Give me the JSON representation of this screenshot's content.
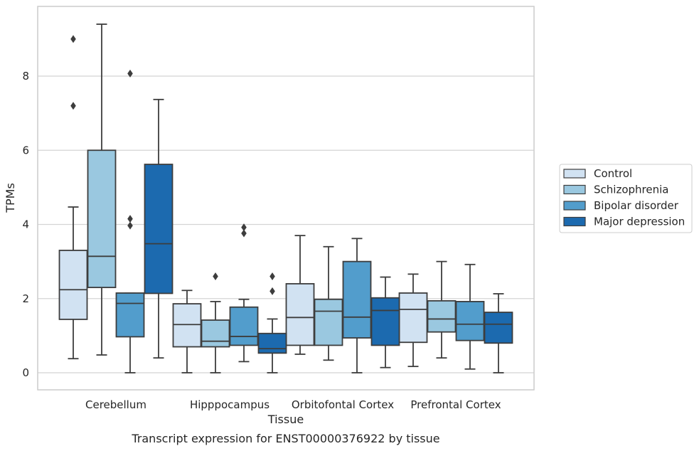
{
  "chart_data": {
    "type": "box",
    "xlabel": "Tissue",
    "ylabel": "TPMs",
    "caption": "Transcript expression for ENST00000376922 by tissue",
    "ylim": [
      -0.45,
      9.9
    ],
    "yticks": [
      0,
      2,
      4,
      6,
      8
    ],
    "grid": "y",
    "legend_placement": "right",
    "categories": [
      "Cerebellum",
      "Hipppocampus",
      "Orbitofontal Cortex",
      "Prefrontal Cortex"
    ],
    "series": [
      {
        "name": "Control",
        "color": "#d1e2f2",
        "boxes": [
          {
            "whislo": 0.38,
            "q1": 1.44,
            "med": 2.24,
            "q3": 3.3,
            "whishi": 4.47,
            "fliers": [
              7.2,
              9.0
            ]
          },
          {
            "whislo": 0.0,
            "q1": 0.7,
            "med": 1.3,
            "q3": 1.86,
            "whishi": 2.22,
            "fliers": []
          },
          {
            "whislo": 0.5,
            "q1": 0.74,
            "med": 1.49,
            "q3": 2.4,
            "whishi": 3.7,
            "fliers": []
          },
          {
            "whislo": 0.17,
            "q1": 0.82,
            "med": 1.71,
            "q3": 2.15,
            "whishi": 2.66,
            "fliers": []
          }
        ]
      },
      {
        "name": "Schizophrenia",
        "color": "#9ac8e0",
        "boxes": [
          {
            "whislo": 0.48,
            "q1": 2.3,
            "med": 3.14,
            "q3": 6.0,
            "whishi": 9.4,
            "fliers": []
          },
          {
            "whislo": 0.0,
            "q1": 0.7,
            "med": 0.85,
            "q3": 1.42,
            "whishi": 1.92,
            "fliers": [
              2.6
            ]
          },
          {
            "whislo": 0.34,
            "q1": 0.74,
            "med": 1.66,
            "q3": 1.98,
            "whishi": 3.4,
            "fliers": []
          },
          {
            "whislo": 0.4,
            "q1": 1.1,
            "med": 1.45,
            "q3": 1.94,
            "whishi": 3.0,
            "fliers": []
          }
        ]
      },
      {
        "name": "Bipolar disorder",
        "color": "#529dcc",
        "boxes": [
          {
            "whislo": 0.0,
            "q1": 0.97,
            "med": 1.87,
            "q3": 2.15,
            "whishi": 2.15,
            "fliers": [
              3.97,
              4.15,
              8.07
            ]
          },
          {
            "whislo": 0.3,
            "q1": 0.74,
            "med": 0.98,
            "q3": 1.77,
            "whishi": 1.98,
            "fliers": [
              3.76,
              3.92
            ]
          },
          {
            "whislo": 0.0,
            "q1": 0.94,
            "med": 1.5,
            "q3": 3.0,
            "whishi": 3.62,
            "fliers": []
          },
          {
            "whislo": 0.1,
            "q1": 0.87,
            "med": 1.31,
            "q3": 1.92,
            "whishi": 2.92,
            "fliers": []
          }
        ]
      },
      {
        "name": "Major depression",
        "color": "#1c6aaf",
        "boxes": [
          {
            "whislo": 0.4,
            "q1": 2.14,
            "med": 3.48,
            "q3": 5.62,
            "whishi": 7.37,
            "fliers": []
          },
          {
            "whislo": 0.0,
            "q1": 0.53,
            "med": 0.65,
            "q3": 1.06,
            "whishi": 1.45,
            "fliers": [
              2.2,
              2.6
            ]
          },
          {
            "whislo": 0.14,
            "q1": 0.74,
            "med": 1.68,
            "q3": 2.02,
            "whishi": 2.58,
            "fliers": []
          },
          {
            "whislo": 0.0,
            "q1": 0.8,
            "med": 1.31,
            "q3": 1.63,
            "whishi": 2.13,
            "fliers": []
          }
        ]
      }
    ]
  }
}
